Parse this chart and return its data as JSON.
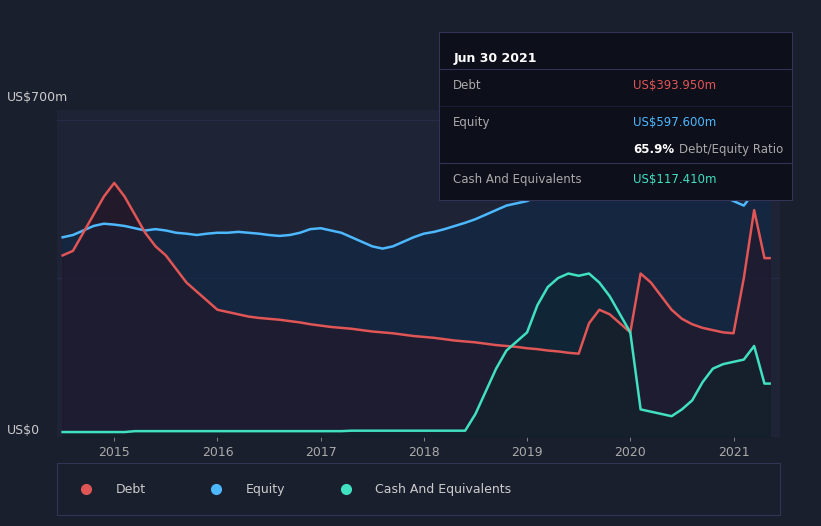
{
  "background_color": "#1a1f2e",
  "plot_bg_color": "#1e2336",
  "title_label": "US$700m",
  "zero_label": "US$0",
  "ylabel_color": "#cccccc",
  "x_ticks": [
    2014.5,
    2015.0,
    2016.0,
    2017.0,
    2018.0,
    2019.0,
    2020.0,
    2021.0,
    2021.5
  ],
  "x_tick_labels": [
    "",
    "2015",
    "2016",
    "2017",
    "2018",
    "2019",
    "2020",
    "2021",
    ""
  ],
  "grid_color": "#2a3050",
  "debt_color": "#e05555",
  "equity_color": "#4db8ff",
  "cash_color": "#40e0c0",
  "equity_fill_color": "#1a3a5c",
  "debt_fill_color": "#3a1a2a",
  "cash_fill_color": "#0d3030",
  "tooltip_bg": "#0d0f1a",
  "tooltip_border": "#2a3050",
  "tooltip_title": "Jun 30 2021",
  "tooltip_debt_label": "Debt",
  "tooltip_debt_value": "US$393.950m",
  "tooltip_equity_label": "Equity",
  "tooltip_equity_value": "US$597.600m",
  "tooltip_ratio": "65.9%",
  "tooltip_ratio_label": "Debt/Equity Ratio",
  "tooltip_cash_label": "Cash And Equivalents",
  "tooltip_cash_value": "US$117.410m",
  "legend_items": [
    "Debt",
    "Equity",
    "Cash And Equivalents"
  ],
  "debt_color_legend": "#e05555",
  "equity_color_legend": "#4db8ff",
  "cash_color_legend": "#40e0c0",
  "time": [
    2014.5,
    2014.6,
    2014.7,
    2014.8,
    2014.9,
    2015.0,
    2015.1,
    2015.2,
    2015.3,
    2015.4,
    2015.5,
    2015.6,
    2015.7,
    2015.8,
    2015.9,
    2016.0,
    2016.1,
    2016.2,
    2016.3,
    2016.4,
    2016.5,
    2016.6,
    2016.7,
    2016.8,
    2016.9,
    2017.0,
    2017.1,
    2017.2,
    2017.3,
    2017.4,
    2017.5,
    2017.6,
    2017.7,
    2017.8,
    2017.9,
    2018.0,
    2018.1,
    2018.2,
    2018.3,
    2018.4,
    2018.5,
    2018.6,
    2018.7,
    2018.8,
    2018.9,
    2019.0,
    2019.1,
    2019.2,
    2019.3,
    2019.4,
    2019.5,
    2019.6,
    2019.7,
    2019.8,
    2019.9,
    2020.0,
    2020.1,
    2020.2,
    2020.3,
    2020.4,
    2020.5,
    2020.6,
    2020.7,
    2020.8,
    2020.9,
    2021.0,
    2021.1,
    2021.2,
    2021.3,
    2021.35
  ],
  "equity": [
    440,
    445,
    455,
    465,
    470,
    468,
    465,
    460,
    455,
    458,
    455,
    450,
    448,
    445,
    448,
    450,
    450,
    452,
    450,
    448,
    445,
    443,
    445,
    450,
    458,
    460,
    455,
    450,
    440,
    430,
    420,
    415,
    420,
    430,
    440,
    448,
    452,
    458,
    465,
    472,
    480,
    490,
    500,
    510,
    515,
    520,
    530,
    545,
    558,
    568,
    575,
    580,
    582,
    580,
    577,
    574,
    570,
    565,
    558,
    548,
    540,
    535,
    530,
    530,
    530,
    520,
    510,
    540,
    598,
    598
  ],
  "debt": [
    400,
    410,
    450,
    490,
    530,
    560,
    530,
    490,
    450,
    420,
    400,
    370,
    340,
    320,
    300,
    280,
    275,
    270,
    265,
    262,
    260,
    258,
    255,
    252,
    248,
    245,
    242,
    240,
    238,
    235,
    232,
    230,
    228,
    225,
    222,
    220,
    218,
    215,
    212,
    210,
    208,
    205,
    202,
    200,
    198,
    195,
    193,
    190,
    188,
    185,
    183,
    250,
    280,
    270,
    250,
    230,
    360,
    340,
    310,
    280,
    260,
    248,
    240,
    235,
    230,
    228,
    350,
    500,
    394,
    394
  ],
  "cash": [
    10,
    10,
    10,
    10,
    10,
    10,
    10,
    12,
    12,
    12,
    12,
    12,
    12,
    12,
    12,
    12,
    12,
    12,
    12,
    12,
    12,
    12,
    12,
    12,
    12,
    12,
    12,
    12,
    13,
    13,
    13,
    13,
    13,
    13,
    13,
    13,
    13,
    13,
    13,
    13,
    50,
    100,
    150,
    190,
    210,
    230,
    290,
    330,
    350,
    360,
    355,
    360,
    340,
    310,
    270,
    230,
    60,
    55,
    50,
    45,
    60,
    80,
    120,
    150,
    160,
    165,
    170,
    200,
    117,
    117
  ]
}
